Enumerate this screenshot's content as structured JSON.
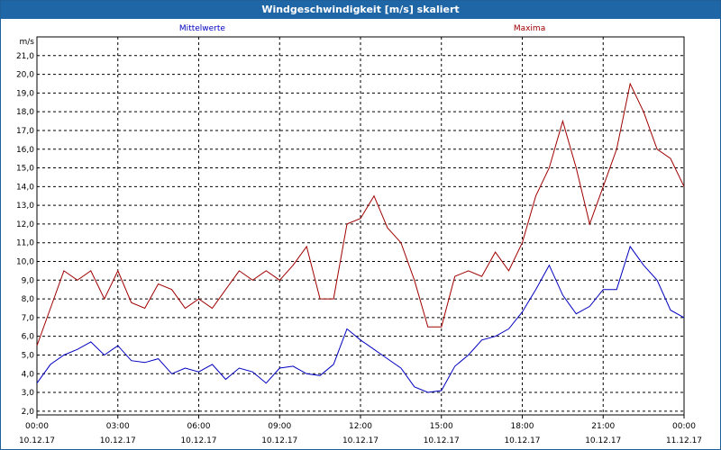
{
  "window": {
    "title": "Windgeschwindigkeit [m/s] skaliert"
  },
  "colors": {
    "mean": "#0000c0",
    "max": "#a00000",
    "titlebar": "#1f66a6",
    "grid": "#000000"
  },
  "chart_data": {
    "type": "line",
    "title": "Windgeschwindigkeit [m/s] skaliert",
    "ylabel": "m/s",
    "xlabel": "",
    "ylim": [
      1.8,
      22.0
    ],
    "xlim": [
      0,
      24
    ],
    "grid": true,
    "legend": "top",
    "y_ticks": [
      "2,0",
      "3,0",
      "4,0",
      "5,0",
      "6,0",
      "7,0",
      "8,0",
      "9,0",
      "10,0",
      "11,0",
      "12,0",
      "13,0",
      "14,0",
      "15,0",
      "16,0",
      "17,0",
      "18,0",
      "19,0",
      "20,0",
      "21,0"
    ],
    "x_ticks": [
      {
        "time": "00:00",
        "date": "10.12.17"
      },
      {
        "time": "03:00",
        "date": "10.12.17"
      },
      {
        "time": "06:00",
        "date": "10.12.17"
      },
      {
        "time": "09:00",
        "date": "10.12.17"
      },
      {
        "time": "12:00",
        "date": "10.12.17"
      },
      {
        "time": "15:00",
        "date": "10.12.17"
      },
      {
        "time": "18:00",
        "date": "10.12.17"
      },
      {
        "time": "21:00",
        "date": "10.12.17"
      },
      {
        "time": "00:00",
        "date": "11.12.17"
      }
    ],
    "series": [
      {
        "name": "Mittelwerte",
        "color": "#0000c0",
        "x": [
          0,
          0.5,
          1,
          1.5,
          2,
          2.5,
          3,
          3.5,
          4,
          4.5,
          5,
          5.5,
          6,
          6.5,
          7,
          7.5,
          8,
          8.5,
          9,
          9.5,
          10,
          10.5,
          11,
          11.5,
          12,
          12.5,
          13,
          13.5,
          14,
          14.5,
          15,
          15.5,
          16,
          16.5,
          17,
          17.5,
          18,
          18.5,
          19,
          19.5,
          20,
          20.5,
          21,
          21.5,
          22,
          22.5,
          23,
          23.5,
          24
        ],
        "values": [
          3.5,
          4.5,
          5.0,
          5.3,
          5.7,
          5.0,
          5.5,
          4.7,
          4.6,
          4.8,
          4.0,
          4.3,
          4.1,
          4.5,
          3.7,
          4.3,
          4.1,
          3.5,
          4.3,
          4.4,
          4.0,
          3.9,
          4.5,
          6.4,
          5.8,
          5.3,
          4.8,
          4.3,
          3.3,
          3.0,
          3.1,
          4.4,
          5.0,
          5.8,
          6.0,
          6.4,
          7.3,
          8.5,
          9.8,
          8.2,
          7.2,
          7.6,
          8.5,
          8.5,
          10.8,
          9.8,
          9.0,
          7.4,
          7.0
        ]
      },
      {
        "name": "Maxima",
        "color": "#a00000",
        "x": [
          0,
          0.5,
          1,
          1.5,
          2,
          2.5,
          3,
          3.5,
          4,
          4.5,
          5,
          5.5,
          6,
          6.5,
          7,
          7.5,
          8,
          8.5,
          9,
          9.5,
          10,
          10.5,
          11,
          11.5,
          12,
          12.5,
          13,
          13.5,
          14,
          14.5,
          15,
          15.5,
          16,
          16.5,
          17,
          17.5,
          18,
          18.5,
          19,
          19.5,
          20,
          20.5,
          21,
          21.5,
          22,
          22.5,
          23,
          23.5,
          24
        ],
        "values": [
          5.5,
          7.5,
          9.5,
          9.0,
          9.5,
          8.0,
          9.5,
          7.8,
          7.5,
          8.8,
          8.5,
          7.5,
          8.0,
          7.5,
          8.5,
          9.5,
          9.0,
          9.5,
          9.0,
          9.8,
          10.8,
          8.0,
          8.0,
          12.0,
          12.3,
          13.5,
          11.8,
          11.0,
          9.0,
          6.5,
          6.5,
          9.2,
          9.5,
          9.2,
          10.5,
          9.5,
          11.0,
          13.5,
          15.0,
          17.5,
          15.0,
          12.0,
          14.0,
          16.0,
          19.5,
          18.0,
          16.0,
          15.5,
          14.0
        ]
      }
    ]
  }
}
